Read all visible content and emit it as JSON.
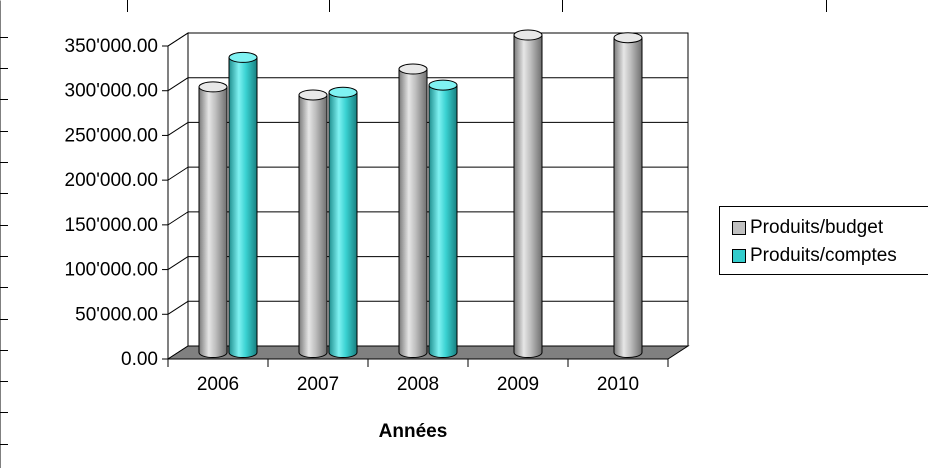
{
  "chart_data": {
    "type": "bar",
    "title": "",
    "xlabel": "Années",
    "ylabel": "",
    "categories": [
      "2006",
      "2007",
      "2008",
      "2009",
      "2010"
    ],
    "ylim": [
      0,
      350000
    ],
    "yticks": [
      "0.00",
      "50'000.00",
      "100'000.00",
      "150'000.00",
      "200'000.00",
      "250'000.00",
      "300'000.00",
      "350'000.00"
    ],
    "grid": true,
    "legend_position": "right",
    "series": [
      {
        "name": "Produits/budget",
        "color": "#c0c0c0",
        "values": [
          297000,
          288000,
          317000,
          355000,
          352000
        ]
      },
      {
        "name": "Produits/comptes",
        "color": "#33cccc",
        "values": [
          330000,
          291000,
          299000,
          null,
          null
        ]
      }
    ]
  }
}
